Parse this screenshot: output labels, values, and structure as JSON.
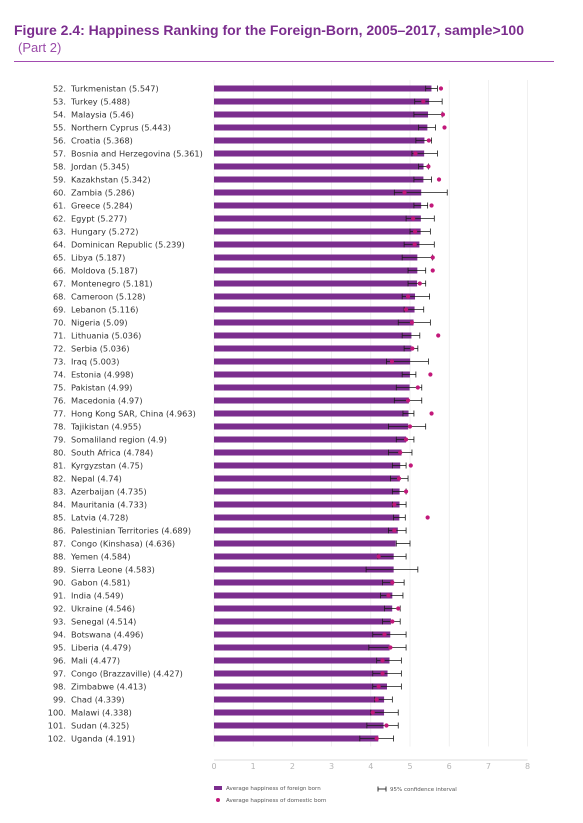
{
  "title": "Figure 2.4: Happiness Ranking for the Foreign-Born, 2005–2017, sample>100",
  "subtitle": "(Part 2)",
  "colors": {
    "bar": "#7b2d8e",
    "dot": "#c2187a",
    "axis": "#bbbbbb",
    "title": "#7b2d8e"
  },
  "legend": {
    "foreign_label": "Average happiness of foreign born",
    "domestic_label": "Average happiness of domestic born",
    "ci_label": "95% confidence interval"
  },
  "chart_data": {
    "type": "bar",
    "orientation": "horizontal",
    "xlim": [
      0,
      8
    ],
    "xticks": [
      0,
      1,
      2,
      3,
      4,
      5,
      6,
      7,
      8
    ],
    "grid": true,
    "legend_position": "bottom",
    "rows": [
      {
        "rank": "52.",
        "country": "Turkmenistan",
        "value": 5.547,
        "lo": 5.4,
        "hi": 5.7,
        "dom": 5.79
      },
      {
        "rank": "53.",
        "country": "Turkey",
        "value": 5.488,
        "lo": 5.12,
        "hi": 5.82,
        "dom": 5.34
      },
      {
        "rank": "54.",
        "country": "Malaysia",
        "value": 5.46,
        "lo": 5.1,
        "hi": 5.82,
        "dom": 5.84
      },
      {
        "rank": "55.",
        "country": "Northern Cyprus",
        "value": 5.443,
        "lo": 5.22,
        "hi": 5.65,
        "dom": 5.88
      },
      {
        "rank": "56.",
        "country": "Croatia",
        "value": 5.368,
        "lo": 5.15,
        "hi": 5.55,
        "dom": 5.48
      },
      {
        "rank": "57.",
        "country": "Bosnia and Herzegovina",
        "value": 5.361,
        "lo": 5.05,
        "hi": 5.7,
        "dom": 5.14
      },
      {
        "rank": "58.",
        "country": "Jordan",
        "value": 5.345,
        "lo": 5.22,
        "hi": 5.47,
        "dom": 5.47
      },
      {
        "rank": "59.",
        "country": "Kazakhstan",
        "value": 5.342,
        "lo": 5.1,
        "hi": 5.55,
        "dom": 5.74
      },
      {
        "rank": "60.",
        "country": "Zambia",
        "value": 5.286,
        "lo": 4.6,
        "hi": 5.95,
        "dom": 4.86
      },
      {
        "rank": "61.",
        "country": "Greece",
        "value": 5.284,
        "lo": 5.1,
        "hi": 5.45,
        "dom": 5.55
      },
      {
        "rank": "62.",
        "country": "Egypt",
        "value": 5.277,
        "lo": 4.9,
        "hi": 5.62,
        "dom": 5.08
      },
      {
        "rank": "63.",
        "country": "Hungary",
        "value": 5.272,
        "lo": 5.0,
        "hi": 5.52,
        "dom": 5.13
      },
      {
        "rank": "64.",
        "country": "Dominican Republic",
        "value": 5.239,
        "lo": 4.85,
        "hi": 5.62,
        "dom": 5.12
      },
      {
        "rank": "65.",
        "country": "Libya",
        "value": 5.187,
        "lo": 4.8,
        "hi": 5.57,
        "dom": 5.58
      },
      {
        "rank": "66.",
        "country": "Moldova",
        "value": 5.187,
        "lo": 4.95,
        "hi": 5.4,
        "dom": 5.58
      },
      {
        "rank": "67.",
        "country": "Montenegro",
        "value": 5.181,
        "lo": 4.95,
        "hi": 5.4,
        "dom": 5.25
      },
      {
        "rank": "68.",
        "country": "Cameroon",
        "value": 5.128,
        "lo": 4.8,
        "hi": 5.5,
        "dom": 4.95
      },
      {
        "rank": "69.",
        "country": "Lebanon",
        "value": 5.116,
        "lo": 4.85,
        "hi": 5.35,
        "dom": 4.9
      },
      {
        "rank": "70.",
        "country": "Nigeria",
        "value": 5.09,
        "lo": 4.7,
        "hi": 5.52,
        "dom": 5.05
      },
      {
        "rank": "71.",
        "country": "Lithuania",
        "value": 5.036,
        "lo": 4.8,
        "hi": 5.25,
        "dom": 5.72
      },
      {
        "rank": "72.",
        "country": "Serbia",
        "value": 5.036,
        "lo": 4.85,
        "hi": 5.2,
        "dom": 5.06
      },
      {
        "rank": "73.",
        "country": "Iraq",
        "value": 5.003,
        "lo": 4.4,
        "hi": 5.47,
        "dom": 4.54
      },
      {
        "rank": "74.",
        "country": "Estonia",
        "value": 4.998,
        "lo": 4.8,
        "hi": 5.15,
        "dom": 5.52
      },
      {
        "rank": "75.",
        "country": "Pakistan",
        "value": 4.99,
        "lo": 4.65,
        "hi": 5.3,
        "dom": 5.2
      },
      {
        "rank": "76.",
        "country": "Macedonia",
        "value": 4.97,
        "lo": 4.6,
        "hi": 5.3,
        "dom": 4.95
      },
      {
        "rank": "77.",
        "country": "Hong Kong SAR, China",
        "value": 4.963,
        "lo": 4.82,
        "hi": 5.1,
        "dom": 5.55
      },
      {
        "rank": "78.",
        "country": "Tajikistan",
        "value": 4.955,
        "lo": 4.45,
        "hi": 5.4,
        "dom": 5.0
      },
      {
        "rank": "79.",
        "country": "Somaliland region",
        "value": 4.9,
        "lo": 4.65,
        "hi": 5.1,
        "dom": 4.9
      },
      {
        "rank": "80.",
        "country": "South Africa",
        "value": 4.784,
        "lo": 4.45,
        "hi": 5.05,
        "dom": 4.75
      },
      {
        "rank": "81.",
        "country": "Kyrgyzstan",
        "value": 4.75,
        "lo": 4.55,
        "hi": 4.9,
        "dom": 5.02
      },
      {
        "rank": "82.",
        "country": "Nepal",
        "value": 4.74,
        "lo": 4.5,
        "hi": 4.95,
        "dom": 4.72
      },
      {
        "rank": "83.",
        "country": "Azerbaijan",
        "value": 4.735,
        "lo": 4.55,
        "hi": 4.9,
        "dom": 4.9
      },
      {
        "rank": "84.",
        "country": "Mauritania",
        "value": 4.733,
        "lo": 4.55,
        "hi": 4.9,
        "dom": 4.6
      },
      {
        "rank": "85.",
        "country": "Latvia",
        "value": 4.728,
        "lo": 4.58,
        "hi": 4.88,
        "dom": 5.45
      },
      {
        "rank": "86.",
        "country": "Palestinian Territories",
        "value": 4.689,
        "lo": 4.45,
        "hi": 4.9,
        "dom": 4.6
      },
      {
        "rank": "87.",
        "country": "Congo (Kinshasa)",
        "value": 4.636,
        "lo": 4.65,
        "hi": 5.0,
        "dom": null
      },
      {
        "rank": "88.",
        "country": "Yemen",
        "value": 4.584,
        "lo": 4.18,
        "hi": 4.9,
        "dom": 4.2
      },
      {
        "rank": "89.",
        "country": "Sierra Leone",
        "value": 4.583,
        "lo": 3.88,
        "hi": 5.2,
        "dom": null
      },
      {
        "rank": "90.",
        "country": "Gabon",
        "value": 4.581,
        "lo": 4.3,
        "hi": 4.85,
        "dom": 4.55
      },
      {
        "rank": "91.",
        "country": "India",
        "value": 4.549,
        "lo": 4.25,
        "hi": 4.82,
        "dom": 4.45
      },
      {
        "rank": "92.",
        "country": "Ukraine",
        "value": 4.546,
        "lo": 4.35,
        "hi": 4.75,
        "dom": 4.7
      },
      {
        "rank": "93.",
        "country": "Senegal",
        "value": 4.514,
        "lo": 4.3,
        "hi": 4.75,
        "dom": 4.55
      },
      {
        "rank": "94.",
        "country": "Botswana",
        "value": 4.496,
        "lo": 4.05,
        "hi": 4.9,
        "dom": 4.35
      },
      {
        "rank": "95.",
        "country": "Liberia",
        "value": 4.479,
        "lo": 3.95,
        "hi": 4.9,
        "dom": 4.5
      },
      {
        "rank": "96.",
        "country": "Mali",
        "value": 4.477,
        "lo": 4.15,
        "hi": 4.78,
        "dom": 4.3
      },
      {
        "rank": "97.",
        "country": "Congo (Brazzaville)",
        "value": 4.427,
        "lo": 4.05,
        "hi": 4.78,
        "dom": 4.3
      },
      {
        "rank": "98.",
        "country": "Zimbabwe",
        "value": 4.413,
        "lo": 4.05,
        "hi": 4.78,
        "dom": 4.2
      },
      {
        "rank": "99.",
        "country": "Chad",
        "value": 4.339,
        "lo": 4.1,
        "hi": 4.55,
        "dom": 4.15
      },
      {
        "rank": "100.",
        "country": "Malawi",
        "value": 4.338,
        "lo": 4.0,
        "hi": 4.7,
        "dom": 4.05
      },
      {
        "rank": "101.",
        "country": "Sudan",
        "value": 4.325,
        "lo": 3.9,
        "hi": 4.7,
        "dom": 4.4
      },
      {
        "rank": "102.",
        "country": "Uganda",
        "value": 4.191,
        "lo": 3.72,
        "hi": 4.58,
        "dom": 4.15
      }
    ]
  }
}
